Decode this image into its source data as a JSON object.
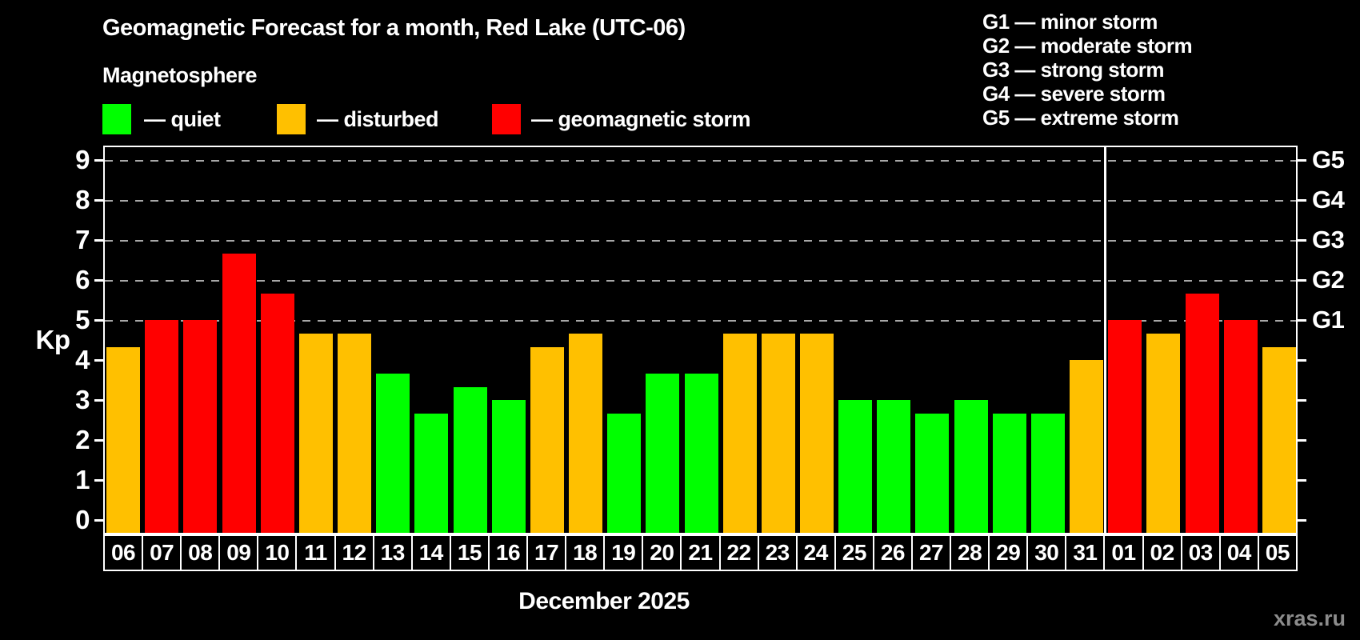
{
  "title": "Geomagnetic Forecast for a month, Red Lake (UTC-06)",
  "subtitle": "Magnetosphere",
  "legend": {
    "items": [
      {
        "key": "quiet",
        "label": "— quiet",
        "color": "#00ff00"
      },
      {
        "key": "disturbed",
        "label": "— disturbed",
        "color": "#ffc000"
      },
      {
        "key": "storm",
        "label": "— geomagnetic storm",
        "color": "#ff0000"
      }
    ]
  },
  "g_legend": [
    "G1 — minor storm",
    "G2 — moderate storm",
    "G3 — strong storm",
    "G4 — severe storm",
    "G5 — extreme storm"
  ],
  "axes": {
    "y_label": "Kp",
    "y_ticks": [
      0,
      1,
      2,
      3,
      4,
      5,
      6,
      7,
      8,
      9
    ],
    "right_labels": [
      {
        "label": "G1",
        "kp": 5
      },
      {
        "label": "G2",
        "kp": 6
      },
      {
        "label": "G3",
        "kp": 7
      },
      {
        "label": "G4",
        "kp": 8
      },
      {
        "label": "G5",
        "kp": 9
      }
    ]
  },
  "x_caption": "December 2025",
  "watermark": "xras.ru",
  "chart_data": {
    "type": "bar",
    "title": "Geomagnetic Forecast for a month, Red Lake (UTC-06)",
    "xlabel": "December 2025",
    "ylabel": "Kp",
    "ylim": [
      0,
      9
    ],
    "grid": "dashed horizontal at Kp 5-9 (G1-G5)",
    "legend_position": "top",
    "month_separator_after_index": 25,
    "categories": [
      "06",
      "07",
      "08",
      "09",
      "10",
      "11",
      "12",
      "13",
      "14",
      "15",
      "16",
      "17",
      "18",
      "19",
      "20",
      "21",
      "22",
      "23",
      "24",
      "25",
      "26",
      "27",
      "28",
      "29",
      "30",
      "31",
      "01",
      "02",
      "03",
      "04",
      "05"
    ],
    "values": [
      4.33,
      5,
      5,
      6.67,
      5.67,
      4.67,
      4.67,
      3.67,
      2.67,
      3.33,
      3,
      4.33,
      4.67,
      2.67,
      3.67,
      3.67,
      4.67,
      4.67,
      4.67,
      3,
      3,
      2.67,
      3,
      2.67,
      2.67,
      4,
      5,
      4.67,
      5.67,
      5,
      4.33
    ],
    "statuses": [
      "disturbed",
      "storm",
      "storm",
      "storm",
      "storm",
      "disturbed",
      "disturbed",
      "quiet",
      "quiet",
      "quiet",
      "quiet",
      "disturbed",
      "disturbed",
      "quiet",
      "quiet",
      "quiet",
      "disturbed",
      "disturbed",
      "disturbed",
      "quiet",
      "quiet",
      "quiet",
      "quiet",
      "quiet",
      "quiet",
      "disturbed",
      "storm",
      "disturbed",
      "storm",
      "storm",
      "disturbed"
    ]
  }
}
